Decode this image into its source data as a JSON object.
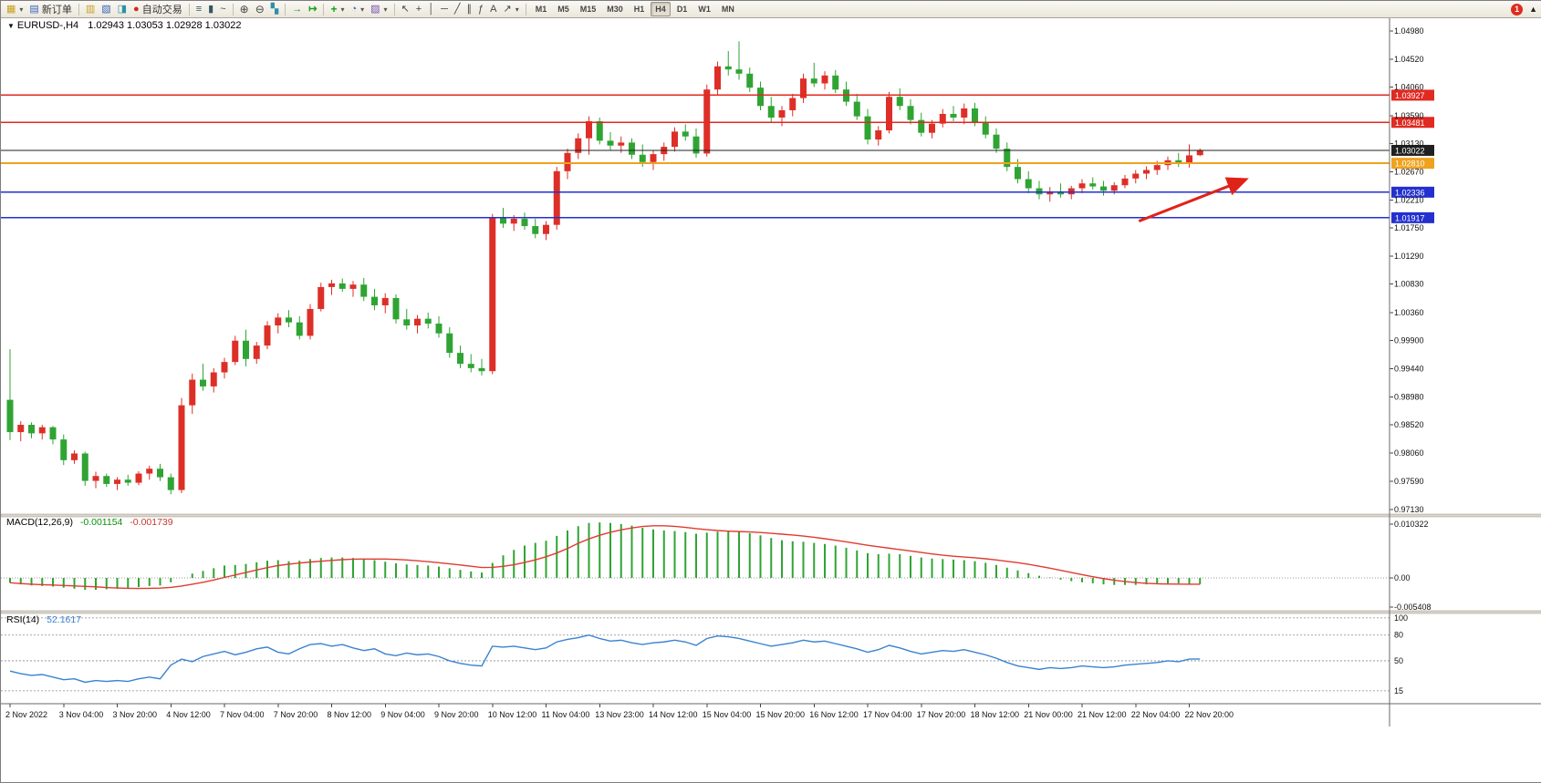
{
  "toolbar": {
    "new_order_label": "新订单",
    "autotrade_label": "自动交易",
    "timeframes": [
      "M1",
      "M5",
      "M15",
      "M30",
      "H1",
      "H4",
      "D1",
      "W1",
      "MN"
    ],
    "active_timeframe": "H4",
    "notification_count": "1",
    "icons": {
      "caret": "▾",
      "title_caret": "▼",
      "scroll_up": "▲",
      "new_chart": "▦",
      "new_order": "▤",
      "market_watch": "▥",
      "data_window": "▧",
      "terminal": "◨",
      "autotrade_dot": "●",
      "chart_bars": "≡",
      "chart_candles": "▮",
      "chart_line": "~",
      "zoom_in": "⊕",
      "zoom_out": "⊖",
      "tile_windows": "▚",
      "autoscroll": "→",
      "chart_shift": "↦",
      "indicators": "+",
      "periods": "◔",
      "templates": "▨",
      "cursor": "↖",
      "crosshair": "+",
      "vline": "│",
      "hline": "─",
      "trendline": "╱",
      "channel": "∥",
      "fibonacci": "ƒ",
      "text": "A",
      "arrows": "↗"
    }
  },
  "chart_data": {
    "type": "candlestick",
    "title": "EURUSD-,H4",
    "symbol": "EURUSD-",
    "period": "H4",
    "ohlc_text": "1.02943 1.03053 1.02928 1.03022",
    "current": {
      "open": 1.02943,
      "high": 1.03053,
      "low": 1.02928,
      "close": 1.03022
    },
    "price_max": 1.0498,
    "price_min": 0.9713,
    "price_axis": [
      "1.04980",
      "1.04520",
      "1.04060",
      "1.03590",
      "1.03130",
      "1.02670",
      "1.02210",
      "1.01750",
      "1.01290",
      "1.00830",
      "1.00360",
      "0.99900",
      "0.99440",
      "0.98980",
      "0.98520",
      "0.98060",
      "0.97590",
      "0.97130"
    ],
    "colors": {
      "bull": "#dd2f27",
      "bear": "#2fa433",
      "background": "#ffffff",
      "axis_text": "#111111"
    },
    "hlines": [
      {
        "price": 1.03927,
        "label": "1.03927",
        "color": "#e02a22",
        "width": 1.6,
        "name": "resistance-line-1"
      },
      {
        "price": 1.03481,
        "label": "1.03481",
        "color": "#e02a22",
        "width": 1.6,
        "name": "resistance-line-2"
      },
      {
        "price": 1.03022,
        "label": "1.03022",
        "color": "#202020",
        "width": 1.0,
        "name": "bid-price-line"
      },
      {
        "price": 1.0281,
        "label": "1.02810",
        "color": "#efa21d",
        "width": 1.8,
        "name": "pivot-line"
      },
      {
        "price": 1.02336,
        "label": "1.02336",
        "color": "#2330cf",
        "width": 1.6,
        "name": "support-line-1"
      },
      {
        "price": 1.01917,
        "label": "1.01917",
        "color": "#2330cf",
        "width": 1.6,
        "name": "support-line-2"
      }
    ],
    "arrow": {
      "bar1": 105.3,
      "price1": 1.0186,
      "bar2": 115.2,
      "price2": 1.0254,
      "color": "#e02318"
    },
    "candles": [
      [
        0.9893,
        0.9976,
        0.9827,
        0.984
      ],
      [
        0.984,
        0.9858,
        0.9825,
        0.9852
      ],
      [
        0.9852,
        0.9856,
        0.983,
        0.9838
      ],
      [
        0.9838,
        0.9852,
        0.9828,
        0.9848
      ],
      [
        0.9848,
        0.985,
        0.982,
        0.9828
      ],
      [
        0.9828,
        0.9836,
        0.9786,
        0.9794
      ],
      [
        0.9794,
        0.981,
        0.9788,
        0.9805
      ],
      [
        0.9805,
        0.9808,
        0.9752,
        0.976
      ],
      [
        0.976,
        0.9775,
        0.9748,
        0.9768
      ],
      [
        0.9768,
        0.9772,
        0.975,
        0.9755
      ],
      [
        0.9755,
        0.9766,
        0.9745,
        0.9762
      ],
      [
        0.9762,
        0.977,
        0.9752,
        0.9757
      ],
      [
        0.9757,
        0.9776,
        0.9753,
        0.9772
      ],
      [
        0.9772,
        0.9785,
        0.9762,
        0.978
      ],
      [
        0.978,
        0.9788,
        0.976,
        0.9766
      ],
      [
        0.9766,
        0.9772,
        0.9738,
        0.9745
      ],
      [
        0.9745,
        0.9896,
        0.974,
        0.9884
      ],
      [
        0.9884,
        0.9936,
        0.987,
        0.9926
      ],
      [
        0.9926,
        0.9952,
        0.9908,
        0.9915
      ],
      [
        0.9915,
        0.9945,
        0.9905,
        0.9938
      ],
      [
        0.9938,
        0.9962,
        0.9928,
        0.9955
      ],
      [
        0.9955,
        0.9998,
        0.995,
        0.999
      ],
      [
        0.999,
        1.0008,
        0.9948,
        0.996
      ],
      [
        0.996,
        0.9988,
        0.9952,
        0.9982
      ],
      [
        0.9982,
        1.0022,
        0.9976,
        1.0015
      ],
      [
        1.0015,
        1.0035,
        1.0002,
        1.0028
      ],
      [
        1.0028,
        1.004,
        1.0012,
        1.002
      ],
      [
        1.002,
        1.003,
        0.9992,
        0.9998
      ],
      [
        0.9998,
        1.005,
        0.9992,
        1.0042
      ],
      [
        1.0042,
        1.0085,
        1.0038,
        1.0078
      ],
      [
        1.0078,
        1.009,
        1.0065,
        1.0084
      ],
      [
        1.0084,
        1.0092,
        1.007,
        1.0075
      ],
      [
        1.0075,
        1.0088,
        1.0062,
        1.0082
      ],
      [
        1.0082,
        1.0093,
        1.0055,
        1.0062
      ],
      [
        1.0062,
        1.0075,
        1.004,
        1.0048
      ],
      [
        1.0048,
        1.0068,
        1.0035,
        1.006
      ],
      [
        1.006,
        1.0066,
        1.0018,
        1.0025
      ],
      [
        1.0025,
        1.0042,
        1.0008,
        1.0015
      ],
      [
        1.0015,
        1.0032,
        1.0002,
        1.0026
      ],
      [
        1.0026,
        1.0036,
        1.001,
        1.0018
      ],
      [
        1.0018,
        1.003,
        0.9995,
        1.0002
      ],
      [
        1.0002,
        1.0012,
        0.9962,
        0.997
      ],
      [
        0.997,
        0.9982,
        0.9945,
        0.9952
      ],
      [
        0.9952,
        0.9968,
        0.9938,
        0.9945
      ],
      [
        0.9945,
        0.996,
        0.9933,
        0.994
      ],
      [
        0.994,
        1.0198,
        0.9935,
        1.0192
      ],
      [
        1.0192,
        1.0208,
        1.0175,
        1.0182
      ],
      [
        1.0182,
        1.0196,
        1.017,
        1.019
      ],
      [
        1.019,
        1.02,
        1.0172,
        1.0178
      ],
      [
        1.0178,
        1.019,
        1.0158,
        1.0165
      ],
      [
        1.0165,
        1.0186,
        1.0155,
        1.018
      ],
      [
        1.018,
        1.0275,
        1.0172,
        1.0268
      ],
      [
        1.0268,
        1.0305,
        1.0255,
        1.0298
      ],
      [
        1.0298,
        1.033,
        1.0288,
        1.0322
      ],
      [
        1.0322,
        1.0358,
        1.0295,
        1.035
      ],
      [
        1.035,
        1.0356,
        1.0312,
        1.0318
      ],
      [
        1.0318,
        1.0332,
        1.0302,
        1.031
      ],
      [
        1.031,
        1.0325,
        1.0298,
        1.0315
      ],
      [
        1.0315,
        1.0322,
        1.0288,
        1.0295
      ],
      [
        1.0295,
        1.0312,
        1.0275,
        1.0283
      ],
      [
        1.0283,
        1.0302,
        1.027,
        1.0296
      ],
      [
        1.0296,
        1.0315,
        1.0285,
        1.0308
      ],
      [
        1.0308,
        1.034,
        1.03,
        1.0333
      ],
      [
        1.0333,
        1.0345,
        1.0318,
        1.0325
      ],
      [
        1.0325,
        1.0338,
        1.029,
        1.0297
      ],
      [
        1.0297,
        1.041,
        1.0292,
        1.0402
      ],
      [
        1.0402,
        1.0448,
        1.0392,
        1.044
      ],
      [
        1.044,
        1.0465,
        1.0425,
        1.0435
      ],
      [
        1.0435,
        1.0481,
        1.0418,
        1.0428
      ],
      [
        1.0428,
        1.0438,
        1.0398,
        1.0405
      ],
      [
        1.0405,
        1.0415,
        1.0368,
        1.0375
      ],
      [
        1.0375,
        1.039,
        1.0348,
        1.0356
      ],
      [
        1.0356,
        1.0375,
        1.0342,
        1.0368
      ],
      [
        1.0368,
        1.0395,
        1.0358,
        1.0388
      ],
      [
        1.0388,
        1.0428,
        1.038,
        1.042
      ],
      [
        1.042,
        1.0446,
        1.0406,
        1.0412
      ],
      [
        1.0412,
        1.0432,
        1.0402,
        1.0425
      ],
      [
        1.0425,
        1.0434,
        1.0396,
        1.0402
      ],
      [
        1.0402,
        1.0415,
        1.0375,
        1.0382
      ],
      [
        1.0382,
        1.0395,
        1.0352,
        1.0358
      ],
      [
        1.0358,
        1.037,
        1.0312,
        1.032
      ],
      [
        1.032,
        1.0342,
        1.031,
        1.0335
      ],
      [
        1.0335,
        1.0398,
        1.033,
        1.039
      ],
      [
        1.039,
        1.0404,
        1.0368,
        1.0375
      ],
      [
        1.0375,
        1.0386,
        1.0345,
        1.0352
      ],
      [
        1.0352,
        1.0364,
        1.0325,
        1.0331
      ],
      [
        1.0331,
        1.0352,
        1.0322,
        1.0346
      ],
      [
        1.0346,
        1.037,
        1.034,
        1.0362
      ],
      [
        1.0362,
        1.0375,
        1.035,
        1.0356
      ],
      [
        1.0356,
        1.0379,
        1.0345,
        1.0371
      ],
      [
        1.0371,
        1.038,
        1.0342,
        1.0348
      ],
      [
        1.0348,
        1.0358,
        1.0322,
        1.0328
      ],
      [
        1.0328,
        1.0338,
        1.0298,
        1.0305
      ],
      [
        1.0305,
        1.0315,
        1.0268,
        1.0275
      ],
      [
        1.0275,
        1.0288,
        1.0248,
        1.0255
      ],
      [
        1.0255,
        1.0268,
        1.0232,
        1.024
      ],
      [
        1.024,
        1.0252,
        1.0222,
        1.023
      ],
      [
        1.023,
        1.0242,
        1.0218,
        1.0235
      ],
      [
        1.0235,
        1.0248,
        1.0225,
        1.023
      ],
      [
        1.023,
        1.0244,
        1.0222,
        1.024
      ],
      [
        1.024,
        1.0255,
        1.0232,
        1.0248
      ],
      [
        1.0248,
        1.0258,
        1.0238,
        1.0243
      ],
      [
        1.0243,
        1.0252,
        1.0228,
        1.0236
      ],
      [
        1.0236,
        1.025,
        1.023,
        1.0245
      ],
      [
        1.0245,
        1.0262,
        1.024,
        1.0256
      ],
      [
        1.0256,
        1.027,
        1.0248,
        1.0264
      ],
      [
        1.0264,
        1.0276,
        1.0255,
        1.027
      ],
      [
        1.027,
        1.0285,
        1.0262,
        1.0278
      ],
      [
        1.0278,
        1.0292,
        1.027,
        1.0286
      ],
      [
        1.0286,
        1.0298,
        1.0275,
        1.028
      ],
      [
        1.028,
        1.0312,
        1.0274,
        1.0294
      ],
      [
        1.02943,
        1.03053,
        1.02928,
        1.03022
      ]
    ],
    "macd": {
      "label": "MACD(12,26,9)",
      "value_main": "-0.001154",
      "value_signal": "-0.001739",
      "axis_max": 0.010322,
      "axis_min": -0.005408,
      "axis_labels": [
        "0.010322",
        "0.00",
        "-0.005408"
      ],
      "histogram_color": "#2fa433",
      "signal_color": "#e03c2f",
      "histogram": [
        -0.0009,
        -0.0012,
        -0.0014,
        -0.0015,
        -0.0016,
        -0.0018,
        -0.002,
        -0.0022,
        -0.0022,
        -0.0021,
        -0.002,
        -0.0019,
        -0.0017,
        -0.0015,
        -0.0014,
        -0.0008,
        0.0,
        0.0008,
        0.0013,
        0.0018,
        0.0023,
        0.0024,
        0.0026,
        0.0029,
        0.0032,
        0.0033,
        0.0031,
        0.0032,
        0.0035,
        0.0037,
        0.0038,
        0.0038,
        0.0037,
        0.0035,
        0.0033,
        0.003,
        0.0027,
        0.0025,
        0.0024,
        0.0023,
        0.0021,
        0.0018,
        0.0015,
        0.0012,
        0.001,
        0.0028,
        0.0042,
        0.0052,
        0.006,
        0.0065,
        0.0069,
        0.0078,
        0.0088,
        0.0096,
        0.0102,
        0.0103,
        0.0102,
        0.01,
        0.0097,
        0.0093,
        0.009,
        0.0088,
        0.0087,
        0.0085,
        0.0082,
        0.0084,
        0.0086,
        0.0087,
        0.0086,
        0.0083,
        0.0079,
        0.0074,
        0.007,
        0.0068,
        0.0067,
        0.0065,
        0.0063,
        0.006,
        0.0056,
        0.0051,
        0.0046,
        0.0044,
        0.0045,
        0.0044,
        0.0041,
        0.0038,
        0.0036,
        0.0035,
        0.0034,
        0.0033,
        0.0031,
        0.0028,
        0.0024,
        0.0019,
        0.0014,
        0.0009,
        0.0004,
        0.0001,
        -0.0003,
        -0.0006,
        -0.0008,
        -0.001,
        -0.0012,
        -0.0013,
        -0.0013,
        -0.0013,
        -0.0012,
        -0.0011,
        -0.001,
        -0.001,
        -0.0011,
        -0.00115
      ]
    },
    "rsi": {
      "label": "RSI(14)",
      "value": "52.1617",
      "levels": [
        100,
        80,
        50,
        15
      ],
      "color": "#3b82d0",
      "values": [
        38,
        35,
        33,
        34,
        31,
        28,
        29,
        25,
        27,
        26,
        27,
        26,
        29,
        31,
        29,
        45,
        52,
        49,
        55,
        58,
        61,
        57,
        60,
        64,
        66,
        60,
        58,
        64,
        69,
        70,
        67,
        69,
        65,
        62,
        64,
        58,
        56,
        59,
        57,
        58,
        55,
        50,
        47,
        45,
        44,
        67,
        66,
        67,
        65,
        63,
        65,
        72,
        75,
        77,
        80,
        76,
        73,
        74,
        71,
        69,
        71,
        72,
        74,
        72,
        68,
        76,
        79,
        78,
        76,
        73,
        70,
        67,
        69,
        71,
        74,
        72,
        73,
        70,
        67,
        64,
        60,
        63,
        68,
        65,
        61,
        58,
        60,
        62,
        61,
        63,
        60,
        57,
        53,
        48,
        44,
        42,
        40,
        42,
        41,
        42,
        44,
        43,
        42,
        43,
        45,
        46,
        47,
        48,
        50,
        49,
        52,
        52.16
      ]
    },
    "time_label_step": 5,
    "time_labels": [
      "2 Nov 2022",
      "3 Nov 04:00",
      "3 Nov 20:00",
      "4 Nov 12:00",
      "7 Nov 04:00",
      "7 Nov 20:00",
      "8 Nov 12:00",
      "9 Nov 04:00",
      "9 Nov 20:00",
      "10 Nov 12:00",
      "11 Nov 04:00",
      "13 Nov 23:00",
      "14 Nov 12:00",
      "15 Nov 04:00",
      "15 Nov 20:00",
      "16 Nov 12:00",
      "17 Nov 04:00",
      "17 Nov 20:00",
      "18 Nov 12:00",
      "21 Nov 00:00",
      "21 Nov 12:00",
      "22 Nov 04:00",
      "22 Nov 20:00"
    ]
  }
}
